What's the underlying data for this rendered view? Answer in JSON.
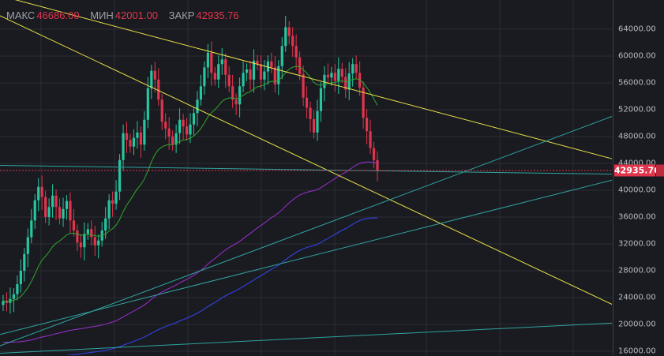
{
  "ohlc": {
    "high_label": "МАКС",
    "high_value": "46686.00",
    "low_label": "МИН",
    "low_value": "42001.00",
    "close_label": "ЗАКР",
    "close_value": "42935.76"
  },
  "colors": {
    "background": "#1a1b20",
    "grid": "#2c2e35",
    "up": "#26c6a0",
    "down": "#e0354d",
    "trendline_yellow": "#e6e04a",
    "trendline_teal": "#2fa3a0",
    "ma_fast": "#2ea82e",
    "ma_mid": "#9b2fd1",
    "ma_slow": "#2f3fd8"
  },
  "chart_data": {
    "type": "candlestick",
    "y_axis": {
      "ticks": [
        "64000.00",
        "60000.00",
        "56000.00",
        "52000.00",
        "48000.00",
        "44000.00",
        "40000.00",
        "36000.00",
        "32000.00",
        "28000.00",
        "24000.00",
        "20000.00",
        "16000.00"
      ],
      "tick_values": [
        64000,
        60000,
        56000,
        52000,
        48000,
        44000,
        40000,
        36000,
        32000,
        28000,
        24000,
        20000,
        16000
      ]
    },
    "last_price": 42935.76,
    "last_price_label": "42935.76",
    "closes": [
      23500,
      23200,
      23800,
      24500,
      26000,
      28000,
      30500,
      33000,
      35500,
      38500,
      40500,
      39000,
      36000,
      37500,
      39200,
      37500,
      35800,
      37200,
      38400,
      35500,
      34000,
      32200,
      31500,
      33500,
      34200,
      33000,
      31800,
      32500,
      34000,
      35800,
      38500,
      38000,
      39800,
      44500,
      48500,
      47500,
      46500,
      47800,
      48600,
      46800,
      50500,
      55200,
      57800,
      56500,
      53500,
      50200,
      49200,
      48000,
      46800,
      48500,
      50500,
      49500,
      48300,
      49800,
      51500,
      53500,
      55500,
      58300,
      60500,
      57500,
      56500,
      58800,
      59500,
      57200,
      55500,
      53500,
      52800,
      55500,
      57500,
      58000,
      56500,
      59300,
      58800,
      56500,
      57700,
      59200,
      58300,
      55800,
      58500,
      61500,
      64300,
      63000,
      61500,
      59800,
      57300,
      53800,
      52300,
      50600,
      48600,
      51800,
      55200,
      57200,
      56800,
      57500,
      56300,
      58100,
      56900,
      55000,
      57400,
      58800,
      57500,
      55300,
      50800,
      48800,
      46300,
      44500,
      42936
    ],
    "overlays": {
      "ma_fast": {
        "color": "ma_fast"
      },
      "ma_mid": {
        "color": "ma_mid"
      },
      "ma_slow": {
        "color": "ma_slow"
      }
    },
    "trendlines": [
      {
        "color": "trendline_yellow",
        "p1": [
          0,
          66000
        ],
        "p2": [
          4.5,
          23000
        ]
      },
      {
        "color": "trendline_yellow",
        "p1": [
          0,
          69000
        ],
        "p2": [
          4.5,
          44700
        ]
      },
      {
        "color": "trendline_teal",
        "p1": [
          0,
          43700
        ],
        "p2": [
          4.5,
          42400
        ]
      },
      {
        "color": "trendline_teal",
        "p1": [
          0,
          16800
        ],
        "p2": [
          4.5,
          51000
        ]
      },
      {
        "color": "trendline_teal",
        "p1": [
          0,
          18500
        ],
        "p2": [
          4.5,
          41500
        ]
      },
      {
        "color": "trendline_teal",
        "p1": [
          0,
          15700
        ],
        "p2": [
          4.5,
          20200
        ]
      }
    ]
  }
}
